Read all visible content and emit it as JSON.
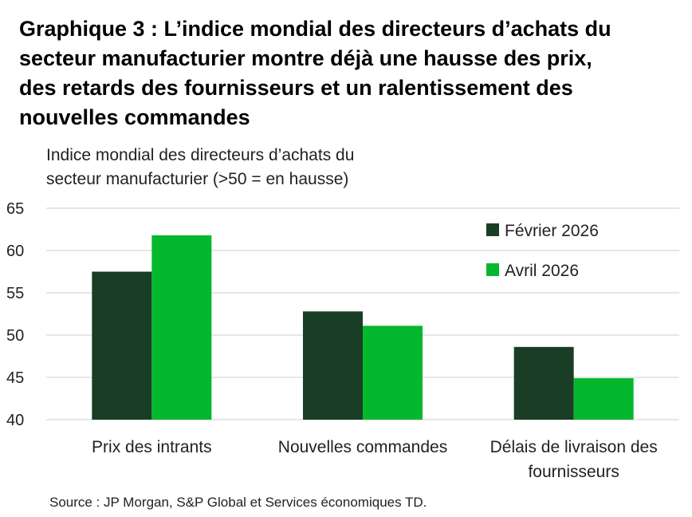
{
  "title_lines": [
    "Graphique 3 : L’indice mondial des directeurs d’achats du",
    "secteur manufacturier montre déjà une hausse des prix,",
    "des retards des fournisseurs et un ralentissement des",
    "nouvelles commandes"
  ],
  "ylabel_lines": [
    "Indice mondial des directeurs d’achats du",
    "secteur manufacturier (>50 = en hausse)"
  ],
  "source": "Source : JP Morgan, S&P Global et Services économiques TD.",
  "colors": {
    "fevrier": "#1a3d26",
    "avril": "#04b82e",
    "grid": "#cccccc"
  },
  "chart_data": {
    "type": "bar",
    "categories": [
      [
        "Prix des intrants"
      ],
      [
        "Nouvelles commandes"
      ],
      [
        "Délais de livraison des",
        "fournisseurs"
      ]
    ],
    "series": [
      {
        "name": "Février 2026",
        "values": [
          57.5,
          52.8,
          48.6
        ]
      },
      {
        "name": "Avril 2026",
        "values": [
          61.8,
          51.1,
          44.9
        ]
      }
    ],
    "ylim": [
      40,
      65
    ],
    "yticks": [
      40,
      45,
      50,
      55,
      60,
      65
    ],
    "grid": true,
    "legend": "top-right"
  }
}
